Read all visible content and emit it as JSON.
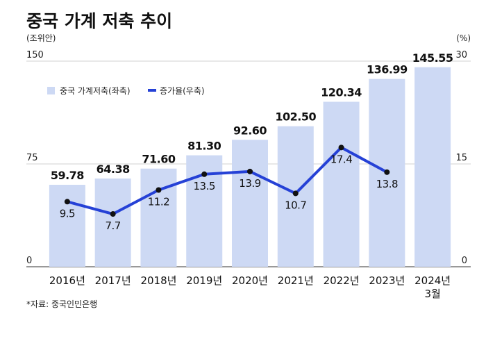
{
  "title": "중국 가계 저축 추이",
  "left_unit": "(조위안)",
  "right_unit": "(%)",
  "source": "*자료: 중국인민은행",
  "colors": {
    "bar": "#cdd9f4",
    "line": "#2541d6",
    "point": "#111111"
  },
  "chart_data": {
    "type": "bar",
    "title": "중국 가계 저축 추이",
    "categories": [
      "2016년",
      "2017년",
      "2018년",
      "2019년",
      "2020년",
      "2021년",
      "2022년",
      "2023년",
      "2024년 3월"
    ],
    "series": [
      {
        "name": "중국 가계저축(좌축)",
        "type": "bar",
        "axis": "left",
        "values": [
          59.78,
          64.38,
          71.6,
          81.3,
          92.6,
          102.5,
          120.34,
          136.99,
          145.55
        ],
        "labels": [
          "59.78",
          "64.38",
          "71.60",
          "81.30",
          "92.60",
          "102.50",
          "120.34",
          "136.99",
          "145.55"
        ]
      },
      {
        "name": "증가율(우축)",
        "type": "line",
        "axis": "right",
        "values": [
          9.5,
          7.7,
          11.2,
          13.5,
          13.9,
          10.7,
          17.4,
          13.8,
          null
        ],
        "labels": [
          "9.5",
          "7.7",
          "11.2",
          "13.5",
          "13.9",
          "10.7",
          "17.4",
          "13.8",
          ""
        ]
      }
    ],
    "ylim_left": [
      0,
      150
    ],
    "yticks_left": [
      "0",
      "75",
      "150"
    ],
    "ylim_right": [
      0,
      30
    ],
    "yticks_right": [
      "0",
      "15",
      "30"
    ],
    "grid": true,
    "legend_position": "top-left"
  }
}
